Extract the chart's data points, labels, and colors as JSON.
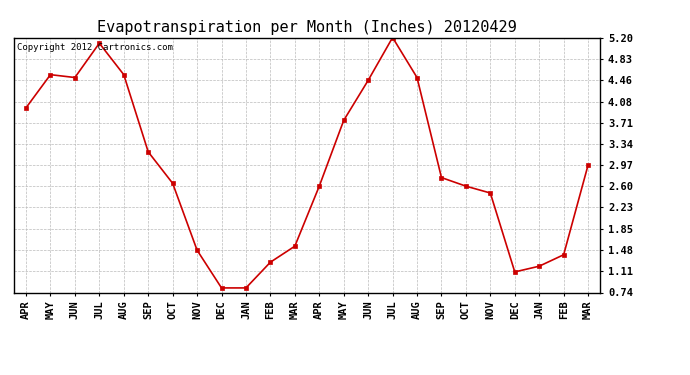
{
  "title": "Evapotranspiration per Month (Inches) 20120429",
  "copyright_text": "Copyright 2012 Cartronics.com",
  "months": [
    "APR",
    "MAY",
    "JUN",
    "JUL",
    "AUG",
    "SEP",
    "OCT",
    "NOV",
    "DEC",
    "JAN",
    "FEB",
    "MAR",
    "APR",
    "MAY",
    "JUN",
    "JUL",
    "AUG",
    "SEP",
    "OCT",
    "NOV",
    "DEC",
    "JAN",
    "FEB",
    "MAR"
  ],
  "values": [
    3.97,
    4.55,
    4.5,
    5.1,
    4.55,
    3.2,
    2.65,
    1.48,
    0.82,
    0.82,
    1.27,
    1.55,
    2.6,
    3.75,
    4.45,
    5.2,
    4.5,
    2.75,
    2.6,
    2.48,
    1.1,
    1.2,
    1.4,
    2.97
  ],
  "y_ticks": [
    0.74,
    1.11,
    1.48,
    1.85,
    2.23,
    2.6,
    2.97,
    3.34,
    3.71,
    4.08,
    4.46,
    4.83,
    5.2
  ],
  "ymin": 0.74,
  "ymax": 5.2,
  "line_color": "#cc0000",
  "marker_color": "#cc0000",
  "bg_color": "#ffffff",
  "grid_color": "#bbbbbb",
  "title_fontsize": 11,
  "tick_fontsize": 7.5,
  "copyright_fontsize": 6.5
}
